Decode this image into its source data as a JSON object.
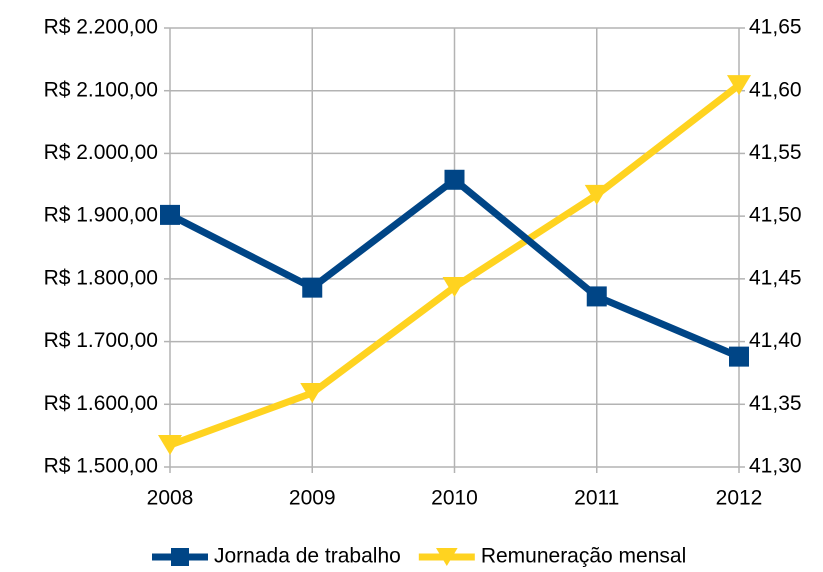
{
  "chart_data": {
    "type": "line",
    "categories": [
      "2008",
      "2009",
      "2010",
      "2011",
      "2012"
    ],
    "series": [
      {
        "name": "Jornada de trabalho",
        "color": "#004586",
        "marker": "square",
        "axis": "y2",
        "values": [
          41.501,
          41.443,
          41.529,
          41.436,
          41.388
        ]
      },
      {
        "name": "Remuneração mensal",
        "color": "#ffd320",
        "marker": "triangle-down",
        "values": [
          1535,
          1618,
          1787,
          1934,
          2109
        ]
      }
    ],
    "ylim": [
      1500,
      2200
    ],
    "yticks": [
      {
        "value": 1500,
        "label": "R$ 1.500,00"
      },
      {
        "value": 1600,
        "label": "R$ 1.600,00"
      },
      {
        "value": 1700,
        "label": "R$ 1.700,00"
      },
      {
        "value": 1800,
        "label": "R$ 1.800,00"
      },
      {
        "value": 1900,
        "label": "R$ 1.900,00"
      },
      {
        "value": 2000,
        "label": "R$ 2.000,00"
      },
      {
        "value": 2100,
        "label": "R$ 2.100,00"
      },
      {
        "value": 2200,
        "label": "R$ 2.200,00"
      }
    ],
    "y2lim": [
      41.3,
      41.65
    ],
    "y2ticks": [
      {
        "value": 41.3,
        "label": "41,30"
      },
      {
        "value": 41.35,
        "label": "41,35"
      },
      {
        "value": 41.4,
        "label": "41,40"
      },
      {
        "value": 41.45,
        "label": "41,45"
      },
      {
        "value": 41.5,
        "label": "41,50"
      },
      {
        "value": 41.55,
        "label": "41,55"
      },
      {
        "value": 41.6,
        "label": "41,60"
      },
      {
        "value": 41.65,
        "label": "41,65"
      }
    ],
    "grid": true,
    "legend": "bottom"
  }
}
